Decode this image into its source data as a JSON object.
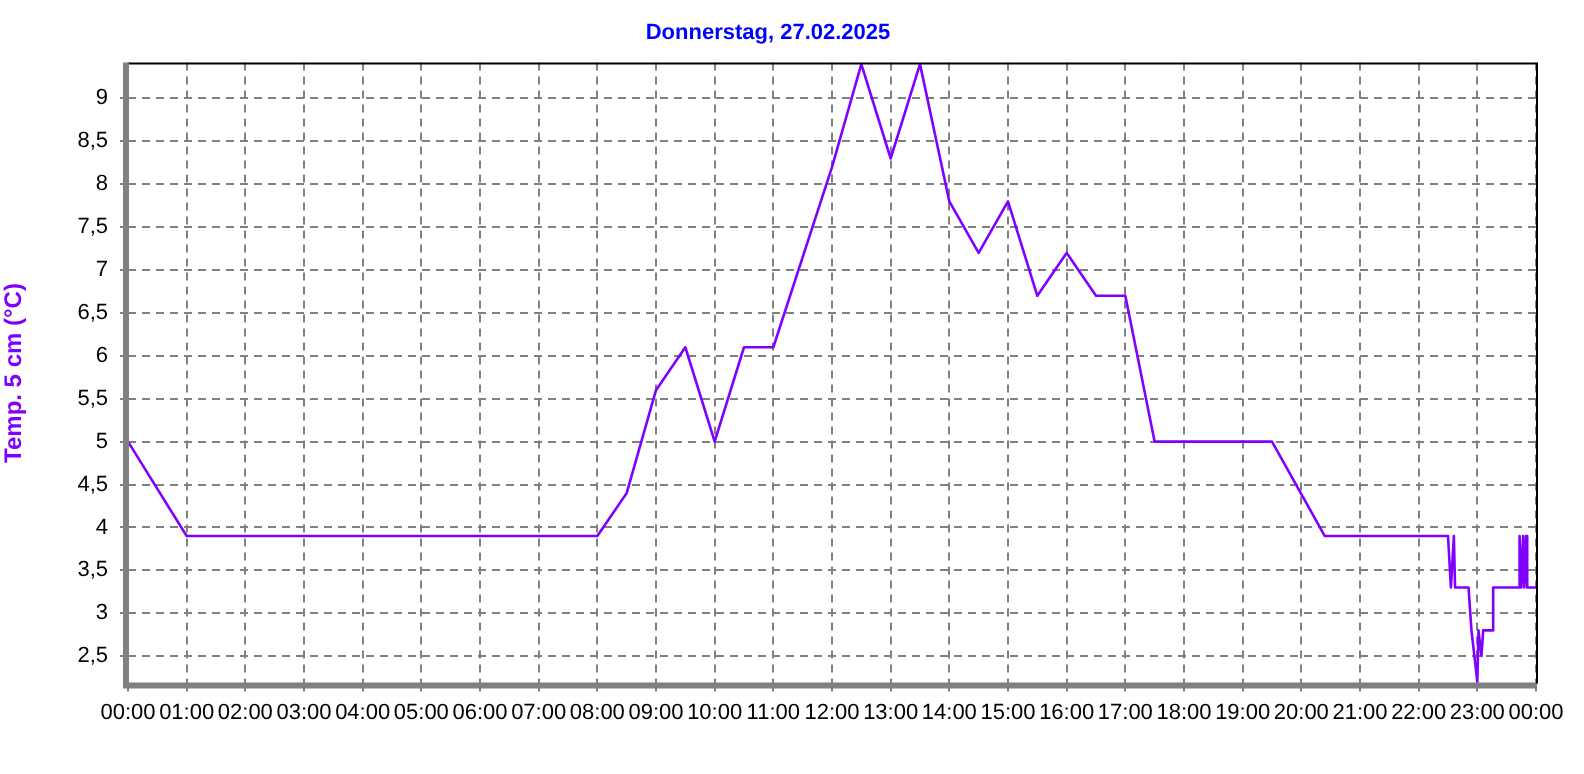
{
  "chart_data": {
    "type": "line",
    "title": "Donnerstag, 27.02.2025",
    "ylabel": "Temp. 5 cm (°C)",
    "xlim": [
      0,
      24
    ],
    "xticks": [
      {
        "value": 0,
        "label": "00:00"
      },
      {
        "value": 1,
        "label": "01:00"
      },
      {
        "value": 2,
        "label": "02:00"
      },
      {
        "value": 3,
        "label": "03:00"
      },
      {
        "value": 4,
        "label": "04:00"
      },
      {
        "value": 5,
        "label": "05:00"
      },
      {
        "value": 6,
        "label": "06:00"
      },
      {
        "value": 7,
        "label": "07:00"
      },
      {
        "value": 8,
        "label": "08:00"
      },
      {
        "value": 9,
        "label": "09:00"
      },
      {
        "value": 10,
        "label": "10:00"
      },
      {
        "value": 11,
        "label": "11:00"
      },
      {
        "value": 12,
        "label": "12:00"
      },
      {
        "value": 13,
        "label": "13:00"
      },
      {
        "value": 14,
        "label": "14:00"
      },
      {
        "value": 15,
        "label": "15:00"
      },
      {
        "value": 16,
        "label": "16:00"
      },
      {
        "value": 17,
        "label": "17:00"
      },
      {
        "value": 18,
        "label": "18:00"
      },
      {
        "value": 19,
        "label": "19:00"
      },
      {
        "value": 20,
        "label": "20:00"
      },
      {
        "value": 21,
        "label": "21:00"
      },
      {
        "value": 22,
        "label": "22:00"
      },
      {
        "value": 23,
        "label": "23:00"
      },
      {
        "value": 24,
        "label": "00:00"
      }
    ],
    "ylim": [
      2.18,
      9.42
    ],
    "yticks": [
      {
        "value": 2.5,
        "label": "2,5"
      },
      3,
      {
        "value": 3.5,
        "label": "3,5"
      },
      4,
      {
        "value": 4.5,
        "label": "4,5"
      },
      5,
      {
        "value": 5.5,
        "label": "5,5"
      },
      6,
      {
        "value": 6.5,
        "label": "6,5"
      },
      7,
      {
        "value": 7.5,
        "label": "7,5"
      },
      8,
      {
        "value": 8.5,
        "label": "8,5"
      },
      9
    ],
    "grid": true,
    "marker": "none",
    "line_style": "solid",
    "series": [
      {
        "color": "#8000ff",
        "x": [
          0,
          1,
          8,
          8.5,
          9,
          9.5,
          10,
          10.5,
          11,
          12,
          12.5,
          13,
          13.5,
          14,
          14.5,
          15,
          15.5,
          16,
          16.5,
          17,
          17.5,
          19.5,
          20.4,
          22.5,
          22.55,
          22.6,
          22.62,
          22.85,
          22.9,
          22.95,
          23,
          23.02,
          23.07,
          23.1,
          23.25,
          23.27,
          23.7,
          23.72,
          23.75,
          23.78,
          23.8,
          23.83,
          23.85,
          24
        ],
        "values": [
          5.0,
          3.9,
          3.9,
          4.4,
          5.6,
          6.1,
          5.0,
          6.1,
          6.1,
          8.2,
          9.4,
          8.3,
          9.4,
          7.8,
          7.2,
          7.8,
          6.7,
          7.2,
          6.7,
          6.7,
          5.0,
          5.0,
          3.9,
          3.9,
          3.3,
          3.9,
          3.3,
          3.3,
          2.8,
          2.5,
          2.2,
          2.8,
          2.5,
          2.8,
          2.8,
          3.3,
          3.3,
          3.9,
          3.3,
          3.9,
          3.3,
          3.9,
          3.3,
          3.3
        ]
      }
    ]
  }
}
